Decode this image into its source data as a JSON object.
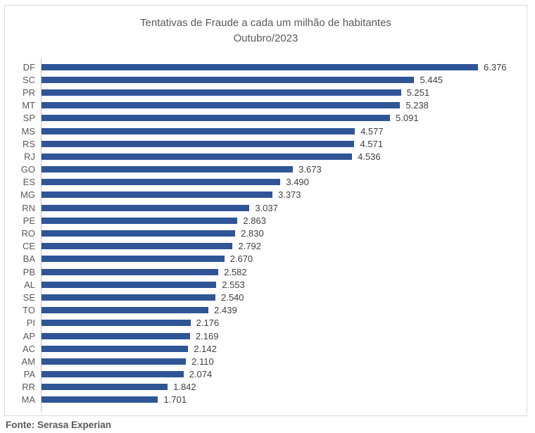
{
  "chart_data": {
    "type": "bar",
    "orientation": "horizontal",
    "title": "Tentativas de Fraude a cada um milhão de habitantes",
    "subtitle": "Outubro/2023",
    "xlabel": "",
    "ylabel": "",
    "xlim": [
      0,
      7000
    ],
    "grid": false,
    "legend": false,
    "axis_ticks_visible": false,
    "categories": [
      "DF",
      "SC",
      "PR",
      "MT",
      "SP",
      "MS",
      "RS",
      "RJ",
      "GO",
      "ES",
      "MG",
      "RN",
      "PE",
      "RO",
      "CE",
      "BA",
      "PB",
      "AL",
      "SE",
      "TO",
      "PI",
      "AP",
      "AC",
      "AM",
      "PA",
      "RR",
      "MA"
    ],
    "values": [
      6376,
      5445,
      5251,
      5238,
      5091,
      4577,
      4571,
      4536,
      3673,
      3490,
      3373,
      3037,
      2863,
      2830,
      2792,
      2670,
      2582,
      2553,
      2540,
      2439,
      2176,
      2169,
      2142,
      2110,
      2074,
      1842,
      1701
    ],
    "value_labels": [
      "6.376",
      "5.445",
      "5.251",
      "5.238",
      "5.091",
      "4.577",
      "4.571",
      "4.536",
      "3.673",
      "3.490",
      "3.373",
      "3.037",
      "2.863",
      "2.830",
      "2.792",
      "2.670",
      "2.582",
      "2.553",
      "2.540",
      "2.439",
      "2.176",
      "2.169",
      "2.142",
      "2.110",
      "2.074",
      "1.842",
      "1.701"
    ]
  },
  "footer": {
    "source": "Fonte: Serasa Experian"
  },
  "colors": {
    "bar": "#2F5597",
    "title": "#595959",
    "category_label": "#595959",
    "value_label": "#404040",
    "frame_border": "#D9D9D9",
    "axis_line": "#BFBFBF",
    "background": "#FFFFFF"
  }
}
